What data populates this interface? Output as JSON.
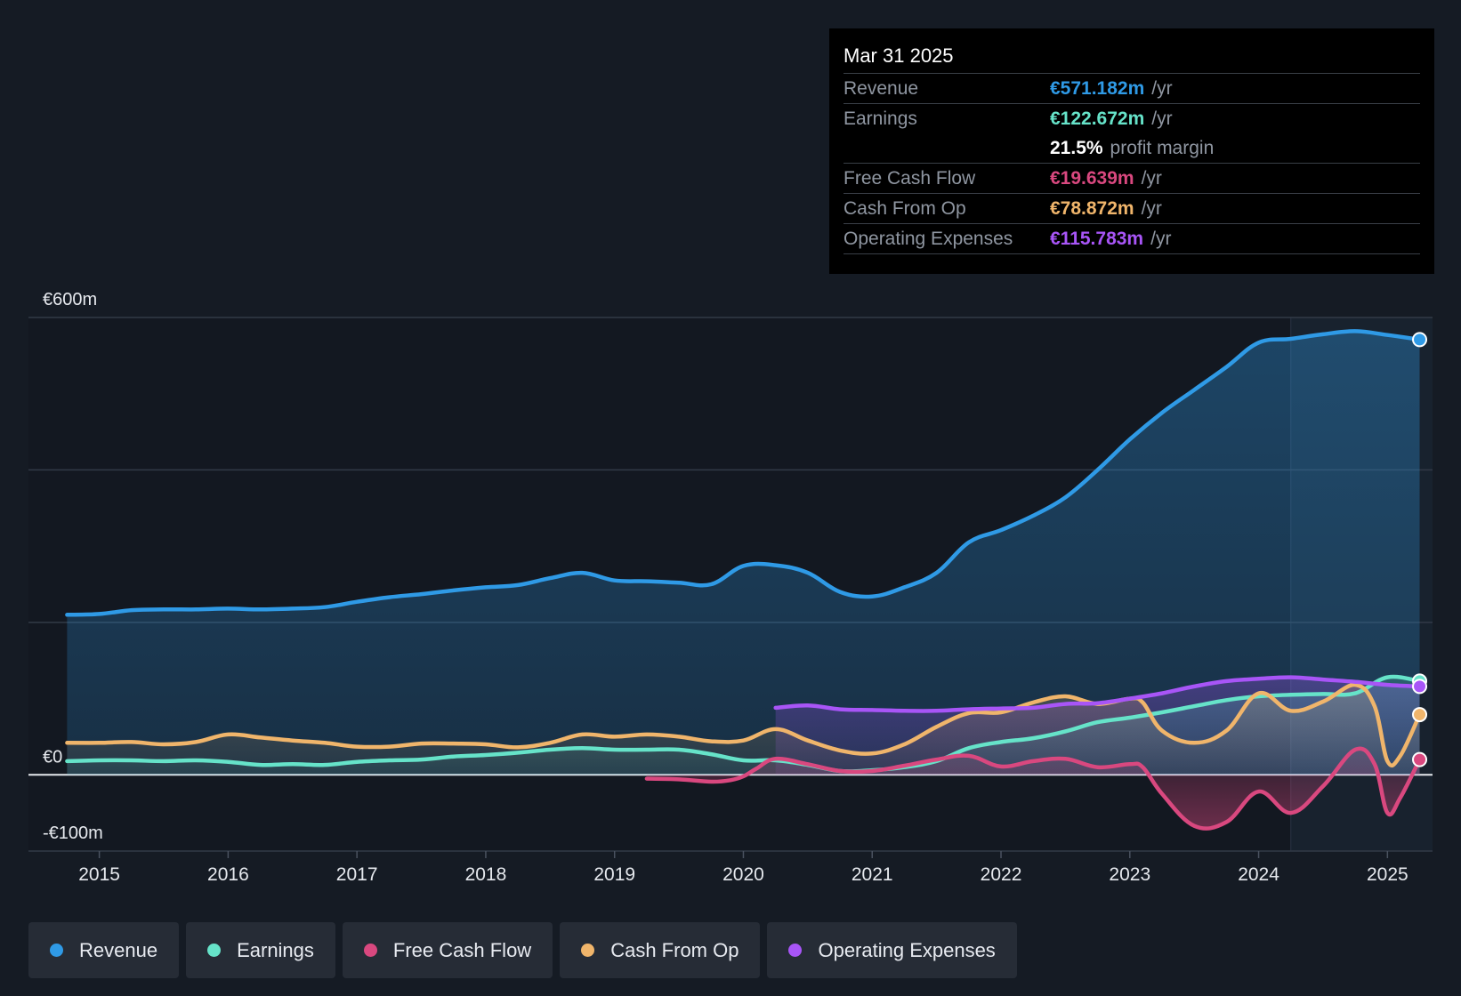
{
  "tooltip": {
    "date": "Mar 31 2025",
    "rows": [
      {
        "label": "Revenue",
        "value": "€571.182m",
        "unit": "/yr",
        "color": "#2f9ae6"
      },
      {
        "label": "Earnings",
        "value": "€122.672m",
        "unit": "/yr",
        "color": "#66e3c9"
      },
      {
        "label": "",
        "value": "21.5%",
        "unit": "profit margin",
        "color": "#ffffff"
      },
      {
        "label": "Free Cash Flow",
        "value": "€19.639m",
        "unit": "/yr",
        "color": "#d9487f"
      },
      {
        "label": "Cash From Op",
        "value": "€78.872m",
        "unit": "/yr",
        "color": "#f0b56b"
      },
      {
        "label": "Operating Expenses",
        "value": "€115.783m",
        "unit": "/yr",
        "color": "#a855f7"
      }
    ]
  },
  "legend": [
    {
      "label": "Revenue",
      "color": "#2f9ae6"
    },
    {
      "label": "Earnings",
      "color": "#66e3c9"
    },
    {
      "label": "Free Cash Flow",
      "color": "#d9487f"
    },
    {
      "label": "Cash From Op",
      "color": "#f0b56b"
    },
    {
      "label": "Operating Expenses",
      "color": "#a855f7"
    }
  ],
  "chart_data": {
    "type": "area",
    "y_tick_labels": [
      {
        "value": 600,
        "label": "€600m"
      },
      {
        "value": 0,
        "label": "€0"
      },
      {
        "value": -100,
        "label": "-€100m"
      }
    ],
    "ylim": [
      -100,
      600
    ],
    "xlim": [
      2014.45,
      2025.35
    ],
    "x_ticks": [
      2015,
      2016,
      2017,
      2018,
      2019,
      2020,
      2021,
      2022,
      2023,
      2024,
      2025
    ],
    "highlight_from": 2024.25,
    "grid": true,
    "legend_position": "bottom-left",
    "series": [
      {
        "name": "Revenue",
        "color": "#2f9ae6",
        "x": [
          2014.75,
          2015.0,
          2015.25,
          2015.5,
          2015.75,
          2016.0,
          2016.25,
          2016.5,
          2016.75,
          2017.0,
          2017.25,
          2017.5,
          2017.75,
          2018.0,
          2018.25,
          2018.5,
          2018.75,
          2019.0,
          2019.25,
          2019.5,
          2019.75,
          2020.0,
          2020.25,
          2020.5,
          2020.75,
          2021.0,
          2021.25,
          2021.5,
          2021.75,
          2022.0,
          2022.25,
          2022.5,
          2022.75,
          2023.0,
          2023.25,
          2023.5,
          2023.75,
          2024.0,
          2024.25,
          2024.5,
          2024.75,
          2025.0,
          2025.25
        ],
        "values": [
          210,
          211,
          216,
          217,
          217,
          218,
          217,
          218,
          220,
          227,
          233,
          237,
          242,
          246,
          249,
          258,
          265,
          255,
          254,
          252,
          250,
          274,
          275,
          265,
          240,
          234,
          246,
          265,
          305,
          321,
          340,
          364,
          400,
          440,
          475,
          505,
          535,
          567,
          572,
          578,
          582,
          577,
          571
        ]
      },
      {
        "name": "Earnings",
        "color": "#66e3c9",
        "x": [
          2014.75,
          2015.0,
          2015.25,
          2015.5,
          2015.75,
          2016.0,
          2016.25,
          2016.5,
          2016.75,
          2017.0,
          2017.25,
          2017.5,
          2017.75,
          2018.0,
          2018.25,
          2018.5,
          2018.75,
          2019.0,
          2019.25,
          2019.5,
          2019.75,
          2020.0,
          2020.25,
          2020.5,
          2020.75,
          2021.0,
          2021.25,
          2021.5,
          2021.75,
          2022.0,
          2022.25,
          2022.5,
          2022.75,
          2023.0,
          2023.25,
          2023.5,
          2023.75,
          2024.0,
          2024.25,
          2024.5,
          2024.75,
          2025.0,
          2025.25
        ],
        "values": [
          18,
          19,
          19,
          18,
          19,
          17,
          13,
          14,
          13,
          17,
          19,
          20,
          24,
          26,
          29,
          33,
          35,
          33,
          33,
          33,
          27,
          19,
          19,
          13,
          5,
          6,
          10,
          18,
          35,
          43,
          48,
          57,
          69,
          75,
          82,
          90,
          98,
          103,
          105,
          106,
          107,
          128,
          123
        ]
      },
      {
        "name": "Free Cash Flow",
        "color": "#d9487f",
        "x": [
          2019.25,
          2019.5,
          2019.75,
          2019.9,
          2020.0,
          2020.1,
          2020.25,
          2020.5,
          2020.75,
          2021.0,
          2021.25,
          2021.5,
          2021.75,
          2022.0,
          2022.25,
          2022.5,
          2022.75,
          2023.0,
          2023.1,
          2023.25,
          2023.5,
          2023.75,
          2024.0,
          2024.25,
          2024.5,
          2024.75,
          2024.9,
          2025.0,
          2025.1,
          2025.25
        ],
        "values": [
          -5,
          -6,
          -9,
          -7,
          -2,
          8,
          21,
          14,
          5,
          5,
          12,
          20,
          25,
          11,
          18,
          21,
          10,
          14,
          10,
          -25,
          -67,
          -62,
          -22,
          -50,
          -15,
          33,
          14,
          -50,
          -30,
          20
        ]
      },
      {
        "name": "Cash From Op",
        "color": "#f0b56b",
        "x": [
          2014.75,
          2015.0,
          2015.25,
          2015.5,
          2015.75,
          2016.0,
          2016.25,
          2016.5,
          2016.75,
          2017.0,
          2017.25,
          2017.5,
          2017.75,
          2018.0,
          2018.25,
          2018.5,
          2018.75,
          2019.0,
          2019.25,
          2019.5,
          2019.75,
          2020.0,
          2020.25,
          2020.5,
          2020.75,
          2021.0,
          2021.25,
          2021.5,
          2021.75,
          2022.0,
          2022.25,
          2022.5,
          2022.75,
          2023.0,
          2023.1,
          2023.25,
          2023.5,
          2023.75,
          2024.0,
          2024.25,
          2024.5,
          2024.75,
          2024.9,
          2025.0,
          2025.1,
          2025.25
        ],
        "values": [
          42,
          42,
          43,
          40,
          43,
          53,
          49,
          45,
          42,
          37,
          37,
          41,
          41,
          40,
          36,
          42,
          53,
          50,
          53,
          50,
          44,
          45,
          60,
          45,
          32,
          28,
          40,
          63,
          81,
          82,
          95,
          103,
          93,
          100,
          95,
          58,
          42,
          58,
          107,
          84,
          96,
          118,
          90,
          18,
          25,
          79
        ]
      },
      {
        "name": "Operating Expenses",
        "color": "#a855f7",
        "x": [
          2020.25,
          2020.5,
          2020.75,
          2021.0,
          2021.25,
          2021.5,
          2021.75,
          2022.0,
          2022.25,
          2022.5,
          2022.75,
          2023.0,
          2023.25,
          2023.5,
          2023.75,
          2024.0,
          2024.25,
          2024.5,
          2024.75,
          2025.0,
          2025.25
        ],
        "values": [
          88,
          91,
          86,
          85,
          84,
          84,
          86,
          87,
          88,
          93,
          94,
          100,
          107,
          116,
          123,
          126,
          128,
          125,
          122,
          118,
          116
        ]
      }
    ]
  }
}
